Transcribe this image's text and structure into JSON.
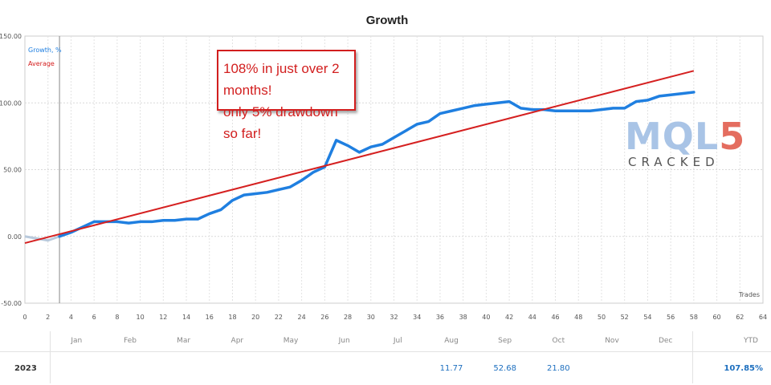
{
  "chart_data": {
    "type": "line",
    "title": "Growth",
    "xlabel": "Trades",
    "ylabel": "",
    "xlim": [
      0,
      64
    ],
    "ylim": [
      -50,
      150
    ],
    "x_ticks": [
      0,
      2,
      4,
      6,
      8,
      10,
      12,
      14,
      16,
      18,
      20,
      22,
      24,
      26,
      28,
      30,
      32,
      34,
      36,
      38,
      40,
      42,
      44,
      46,
      48,
      50,
      52,
      54,
      56,
      58,
      60,
      62,
      64
    ],
    "y_ticks": [
      "150.00",
      "100.00",
      "50.00",
      "0.00",
      "-50.00"
    ],
    "y_tick_values": [
      150,
      100,
      50,
      0,
      -50
    ],
    "grid": true,
    "legend_position": "top-left",
    "series": [
      {
        "name": "Growth, %",
        "color": "#1f7fe0",
        "points": [
          [
            0,
            0
          ],
          [
            2,
            -3
          ],
          [
            3,
            0
          ],
          [
            4,
            3
          ],
          [
            5,
            7
          ],
          [
            6,
            11
          ],
          [
            7,
            11
          ],
          [
            8,
            11
          ],
          [
            9,
            10
          ],
          [
            10,
            11
          ],
          [
            11,
            11
          ],
          [
            12,
            12
          ],
          [
            13,
            12
          ],
          [
            14,
            13
          ],
          [
            15,
            13
          ],
          [
            16,
            17
          ],
          [
            17,
            20
          ],
          [
            18,
            27
          ],
          [
            19,
            31
          ],
          [
            20,
            32
          ],
          [
            21,
            33
          ],
          [
            22,
            35
          ],
          [
            23,
            37
          ],
          [
            24,
            42
          ],
          [
            25,
            48
          ],
          [
            26,
            52
          ],
          [
            27,
            72
          ],
          [
            28,
            68
          ],
          [
            29,
            63
          ],
          [
            30,
            67
          ],
          [
            31,
            69
          ],
          [
            32,
            74
          ],
          [
            33,
            79
          ],
          [
            34,
            84
          ],
          [
            35,
            86
          ],
          [
            36,
            92
          ],
          [
            37,
            94
          ],
          [
            38,
            96
          ],
          [
            39,
            98
          ],
          [
            40,
            99
          ],
          [
            41,
            100
          ],
          [
            42,
            101
          ],
          [
            43,
            96
          ],
          [
            44,
            95
          ],
          [
            45,
            95
          ],
          [
            46,
            94
          ],
          [
            47,
            94
          ],
          [
            48,
            94
          ],
          [
            49,
            94
          ],
          [
            50,
            95
          ],
          [
            51,
            96
          ],
          [
            52,
            96
          ],
          [
            53,
            101
          ],
          [
            54,
            102
          ],
          [
            55,
            105
          ],
          [
            56,
            106
          ],
          [
            57,
            107
          ],
          [
            58,
            108
          ]
        ]
      },
      {
        "name": "Average",
        "color": "#d52020",
        "points": [
          [
            0,
            -5
          ],
          [
            58,
            124
          ]
        ]
      }
    ],
    "vertical_marker_x": 3,
    "months": [
      "Jan",
      "Feb",
      "Mar",
      "Apr",
      "May",
      "Jun",
      "Jul",
      "Aug",
      "Sep",
      "Oct",
      "Nov",
      "Dec",
      "YTD"
    ],
    "year_row": {
      "year": "2023",
      "values": {
        "Aug": "11.77",
        "Sep": "52.68",
        "Oct": "21.80"
      },
      "ytd": "107.85%"
    }
  },
  "annotation": {
    "line1": "108% in just over 2 months!",
    "line2": "only 5% drawdown so far!"
  },
  "watermark": {
    "logo_left": "MQL",
    "logo_right": "5",
    "subtitle": "CRACKED"
  }
}
